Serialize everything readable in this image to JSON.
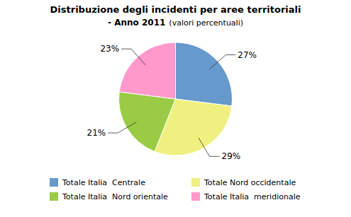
{
  "chart_data": {
    "type": "pie",
    "title": "Distribuzione degli incidenti per aree territoriali",
    "subtitle": [
      "- Anno 2011",
      "(valori percentuali)"
    ],
    "categories": [
      "Totale Italia  Centrale",
      "Totale Nord occidentale",
      "Totale Italia  Nord orientale",
      "Totale Italia  meridionale"
    ],
    "values": [
      27,
      29,
      21,
      23
    ],
    "value_labels": [
      "27%",
      "29%",
      "21%",
      "23%"
    ],
    "colors": [
      "#6699CC",
      "#F0F080",
      "#99CC44",
      "#FF99CC"
    ],
    "data_labels": true,
    "legend": "bottom"
  }
}
